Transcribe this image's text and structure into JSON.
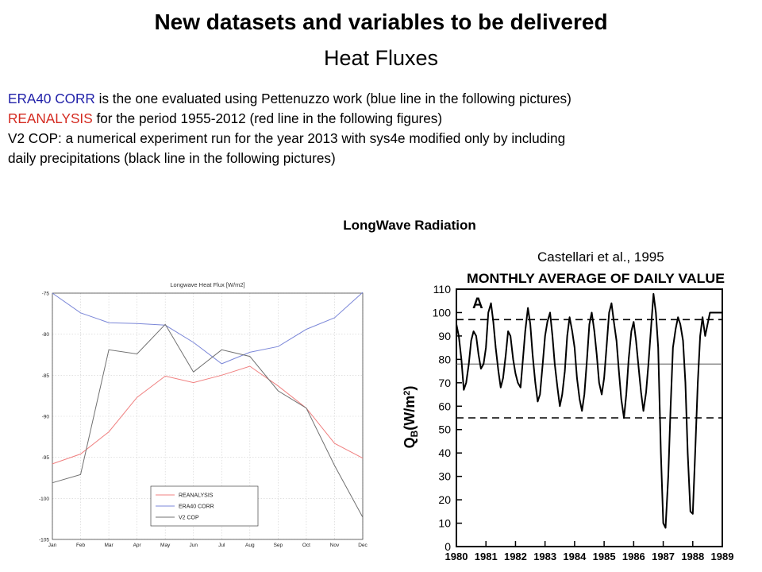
{
  "slide": {
    "title": "New datasets and variables to be delivered",
    "subtitle": "Heat Fluxes",
    "intro": [
      {
        "highlight": "ERA40 CORR",
        "color": "blue",
        "rest": " is the one evaluated using Pettenuzzo work (blue line in the following pictures)"
      },
      {
        "highlight": "REANALYSIS",
        "color": "red",
        "rest": " for the period 1955-2012 (red line in the following figures)"
      },
      {
        "highlight": "",
        "color": "",
        "rest": "V2 COP: a numerical experiment run for the year 2013 with sys4e modified only by including"
      },
      {
        "highlight": "",
        "color": "",
        "rest": "daily precipitations (black line in the following pictures)"
      }
    ],
    "section_label": "LongWave Radiation",
    "citation": "Castellari et al., 1995"
  },
  "chart_data": [
    {
      "type": "line",
      "title": "Longwave Heat Flux [W/m2]",
      "xlabel": "",
      "ylabel": "",
      "categories": [
        "Jan",
        "Feb",
        "Mar",
        "Apr",
        "May",
        "Jun",
        "Jul",
        "Aug",
        "Sep",
        "Oct",
        "Nov",
        "Dec"
      ],
      "ylim": [
        -105,
        -75
      ],
      "yticks": [
        -75,
        -80,
        -85,
        -90,
        -95,
        -100,
        -105
      ],
      "grid": true,
      "legend_position": "bottom-right",
      "series": [
        {
          "name": "REANALYSIS",
          "color": "#f08080",
          "values": [
            -95.8,
            -94.6,
            -91.9,
            -87.7,
            -85.1,
            -85.9,
            -85.0,
            -83.9,
            -86.3,
            -89.0,
            -93.3,
            -95.1
          ]
        },
        {
          "name": "ERA40 CORR",
          "color": "#7b87d8",
          "values": [
            -75.0,
            -77.4,
            -78.6,
            -78.7,
            -78.9,
            -81.0,
            -83.6,
            -82.2,
            -81.5,
            -79.4,
            -78.0,
            -74.9
          ]
        },
        {
          "name": "V2 COP",
          "color": "#707070",
          "values": [
            -98.1,
            -97.1,
            -81.9,
            -82.4,
            -78.8,
            -84.6,
            -81.9,
            -82.7,
            -86.9,
            -89.0,
            -96.0,
            -102.3
          ]
        }
      ]
    },
    {
      "type": "line",
      "title": "MONTHLY AVERAGE OF DAILY VALUE",
      "panel_label": "A",
      "xlabel": "",
      "ylabel": "QB(W/m2)",
      "xticks": [
        "1980",
        "1981",
        "1982",
        "1983",
        "1984",
        "1985",
        "1986",
        "1987",
        "1988",
        "1989"
      ],
      "xlim": [
        1980,
        1989
      ],
      "ylim": [
        0,
        110
      ],
      "yticks": [
        0,
        10,
        20,
        30,
        40,
        50,
        60,
        70,
        80,
        90,
        100,
        110
      ],
      "grid": false,
      "reference_lines": [
        {
          "style": "dashed",
          "y": 97
        },
        {
          "style": "solid",
          "y": 78
        },
        {
          "style": "dashed",
          "y": 55
        }
      ],
      "series": [
        {
          "name": "",
          "color": "#000000",
          "x": [
            1980.0,
            1980.08,
            1980.17,
            1980.25,
            1980.33,
            1980.42,
            1980.5,
            1980.58,
            1980.67,
            1980.75,
            1980.83,
            1980.92,
            1981.0,
            1981.08,
            1981.17,
            1981.25,
            1981.33,
            1981.42,
            1981.5,
            1981.58,
            1981.67,
            1981.75,
            1981.83,
            1981.92,
            1982.0,
            1982.08,
            1982.17,
            1982.25,
            1982.33,
            1982.42,
            1982.5,
            1982.58,
            1982.67,
            1982.75,
            1982.83,
            1982.92,
            1983.0,
            1983.08,
            1983.17,
            1983.25,
            1983.33,
            1983.42,
            1983.5,
            1983.58,
            1983.67,
            1983.75,
            1983.83,
            1983.92,
            1984.0,
            1984.08,
            1984.17,
            1984.25,
            1984.33,
            1984.42,
            1984.5,
            1984.58,
            1984.67,
            1984.75,
            1984.83,
            1984.92,
            1985.0,
            1985.08,
            1985.17,
            1985.25,
            1985.33,
            1985.42,
            1985.5,
            1985.58,
            1985.67,
            1985.75,
            1985.83,
            1985.92,
            1986.0,
            1986.08,
            1986.17,
            1986.25,
            1986.33,
            1986.42,
            1986.5,
            1986.58,
            1986.67,
            1986.75,
            1986.83,
            1986.92,
            1987.0,
            1987.08,
            1987.17,
            1987.25,
            1987.33,
            1987.42,
            1987.5,
            1987.58,
            1987.67,
            1987.75,
            1987.83,
            1987.92,
            1988.0,
            1988.08,
            1988.17,
            1988.25,
            1988.33,
            1988.42,
            1988.5,
            1988.58,
            1988.67,
            1988.75,
            1988.83,
            1988.92,
            1989.0
          ],
          "values": [
            95,
            90,
            80,
            67,
            70,
            78,
            88,
            92,
            90,
            82,
            76,
            78,
            85,
            100,
            104,
            96,
            85,
            75,
            68,
            72,
            82,
            92,
            90,
            80,
            74,
            70,
            68,
            80,
            92,
            102,
            95,
            82,
            70,
            62,
            65,
            78,
            90,
            96,
            100,
            90,
            78,
            68,
            60,
            65,
            75,
            90,
            98,
            92,
            85,
            72,
            63,
            58,
            65,
            80,
            95,
            100,
            92,
            82,
            70,
            65,
            72,
            85,
            100,
            104,
            96,
            88,
            75,
            63,
            55,
            65,
            80,
            92,
            96,
            88,
            76,
            66,
            58,
            66,
            78,
            92,
            108,
            100,
            85,
            40,
            10,
            8,
            30,
            60,
            85,
            93,
            98,
            95,
            88,
            70,
            40,
            15,
            14,
            40,
            70,
            90,
            98,
            90,
            95,
            100,
            100,
            100,
            100,
            100,
            100
          ]
        }
      ]
    }
  ]
}
